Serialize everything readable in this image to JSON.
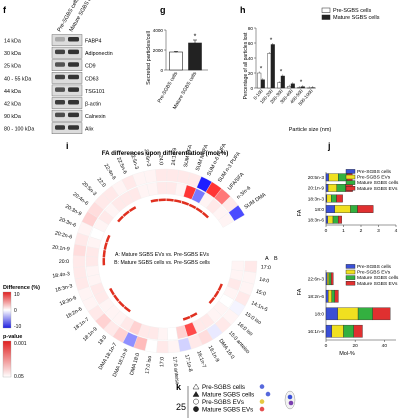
{
  "panels": {
    "f": {
      "letter": "f",
      "columns": [
        "Pre-SGBS cells",
        "Mature SGBS cells"
      ],
      "rows": [
        {
          "size": "14 kDa",
          "protein": "FABP4"
        },
        {
          "size": "30 kDa",
          "protein": "Adiponectin"
        },
        {
          "size": "25 kDa",
          "protein": "CD9"
        },
        {
          "size": "40 - 55 kDa",
          "protein": "CD63"
        },
        {
          "size": "44 kDa",
          "protein": "TSG101"
        },
        {
          "size": "42 kDa",
          "protein": "β-actin"
        },
        {
          "size": "90 kDa",
          "protein": "Calnexin"
        },
        {
          "size": "80 - 100 kDa",
          "protein": "Alix"
        }
      ]
    },
    "g": {
      "letter": "g",
      "ylabel": "Secreted particles/cell",
      "significance": "*",
      "chart_data": {
        "type": "bar",
        "categories": [
          "Pre-SGBS cells",
          "Mature SGBS cells"
        ],
        "values": [
          1800,
          2700
        ],
        "errors": [
          60,
          300
        ],
        "ylim": [
          0,
          4000
        ],
        "yticks": [
          0,
          2000,
          4000
        ],
        "colors": [
          "#ffffff",
          "#222222"
        ]
      }
    },
    "h": {
      "letter": "h",
      "ylabel": "Percentage of all particles lost",
      "xlabel": "Particle size (nm)",
      "legend": [
        "Pre-SGBS cells",
        "Mature SGBS cells"
      ],
      "chart_data": {
        "type": "bar",
        "categories": [
          "0-100",
          "100-200",
          "200-300",
          "300-400",
          "400-500",
          "500-1000"
        ],
        "series": [
          {
            "name": "Pre-SGBS cells",
            "values": [
              20,
              46,
              7,
              2.2,
              0.6,
              0.2
            ]
          },
          {
            "name": "Mature SGBS cells",
            "values": [
              11,
              58,
              16,
              5.6,
              1.8,
              0.6
            ]
          }
        ],
        "ylim": [
          0,
          80
        ],
        "yticks": [
          0,
          20,
          40,
          60,
          80
        ],
        "significance": [
          "*",
          "*",
          "*",
          "",
          "*",
          ""
        ]
      }
    },
    "i": {
      "letter": "i",
      "title": "FA differences upon differentiation (mol-%)",
      "inner_text_a": "A: Mature SGBS EVs vs. Pre-SGBS EVs",
      "inner_text_b": "B: Mature SGBS cells vs. Pre-SGBS cells",
      "ring_a": "A",
      "ring_b": "B",
      "labels": [
        "17:0",
        "14:0",
        "15:0",
        "14:1n-5",
        "15:0 iso",
        "16:0 iso",
        "15:0 anteiso",
        "DMA 16:0",
        "16:1n-9",
        "16:1n-7",
        "17:1n-8",
        "17:0 anteiso",
        "17:0",
        "17:0 iso",
        "DMA 18:0",
        "DMA 18:1n-9",
        "DMA 18:1n-7",
        "18:0",
        "18:1n-9",
        "18:1n-7",
        "18:2n-6",
        "18:3n-6",
        "18:3n-3",
        "18:4n-3",
        "20:0",
        "20:1n-9",
        "20:2n-6",
        "20:3n-6",
        "20:3n-9",
        "20:4n-6",
        "20:5n-3",
        "22:0",
        "22:4n-6",
        "22:5n-6",
        "22:5n-3",
        "22:6n-3",
        "24:0",
        "24:1n-9",
        "SUM SFA",
        "SUM MUFA",
        "SUM n-6 PUFA",
        "SUM n-3 PUFA",
        "UFA/SFA",
        "n-3/n-6",
        "SUM DMA"
      ],
      "outer_cells": [
        0.1,
        0.05,
        0.05,
        0.1,
        -0.05,
        0.05,
        0.1,
        -0.1,
        0.15,
        0.1,
        -0.2,
        0.05,
        0.1,
        0,
        0.3,
        -0.5,
        0.2,
        0.1,
        0.2,
        0.1,
        0.05,
        0.05,
        0.1,
        0.1,
        0.1,
        0.15,
        0.1,
        0.05,
        0.2,
        0.15,
        0.1,
        0.1,
        0.05,
        0.1,
        0.05,
        0.05,
        0.1,
        0.1,
        0.1,
        0.1,
        -1.0,
        0.9,
        0.6,
        0.1,
        -0.8
      ],
      "inner_cells": [
        0.05,
        0.05,
        0.1,
        0.05,
        0,
        0.05,
        0.05,
        0.1,
        0.1,
        0.8,
        0.2,
        0,
        0.05,
        0.1,
        0.1,
        0.2,
        0.1,
        0.05,
        0.05,
        0.05,
        0.1,
        0.1,
        0.05,
        0.05,
        0.1,
        0.1,
        0.05,
        0,
        0.05,
        0.1,
        0.05,
        0.1,
        0.1,
        0.1,
        0.05,
        0.05,
        0.1,
        0.1,
        0.05,
        0.9,
        -0.6,
        0.05,
        0.1,
        0.05,
        0.05
      ],
      "colorbar": {
        "title": "Difference (%)",
        "ticks": [
          "10",
          "0",
          "-10"
        ]
      },
      "pvalue_bar": {
        "title": "p-value",
        "ticks": [
          "0.001",
          "0.05"
        ]
      }
    },
    "j": {
      "letter": "j",
      "ylabel": "FA",
      "top": {
        "legend": [
          "Pre-SGBS cells",
          "Pre-SGBS EVs",
          "Mature SGBS cells",
          "Mature SGBS EVs"
        ],
        "xticks": [
          "0",
          "1",
          "2",
          "3",
          "4"
        ],
        "xlim": [
          0,
          4
        ],
        "xlabel": "",
        "chart_data": {
          "type": "bar",
          "orientation": "horizontal",
          "categories": [
            "20:5n-3",
            "20:1n-9",
            "18:3n-3",
            "18:0",
            "18:3n-6"
          ],
          "series": [
            {
              "name": "Pre-SGBS cells",
              "values": [
                0.15,
                0.12,
                0.05,
                0.5,
                0.1
              ]
            },
            {
              "name": "Pre-SGBS EVs",
              "values": [
                0.55,
                0.5,
                0.25,
                0.9,
                0.3
              ]
            },
            {
              "name": "Mature SGBS cells",
              "values": [
                0.5,
                0.5,
                0.3,
                0.4,
                0.3
              ]
            },
            {
              "name": "Mature SGBS EVs",
              "values": [
                0.3,
                0.4,
                0.35,
                0.9,
                0.2
              ]
            }
          ]
        }
      },
      "bottom": {
        "legend": [
          "Pre-SGBS cells",
          "Pre-SGBS EVs",
          "Mature SGBS cells",
          "Mature SGBS EVs"
        ],
        "xticks": [
          "0",
          "20",
          "40"
        ],
        "xlim": [
          0,
          48
        ],
        "xlabel": "Mol-%",
        "chart_data": {
          "type": "bar",
          "orientation": "horizontal",
          "categories": [
            "22:6n-3",
            "18:2n-6",
            "18:0",
            "16:1n-9"
          ],
          "series": [
            {
              "name": "Pre-SGBS cells",
              "values": [
                0.8,
                1.5,
                8,
                4
              ]
            },
            {
              "name": "Pre-SGBS EVs",
              "values": [
                1.2,
                2.5,
                14,
                8
              ]
            },
            {
              "name": "Mature SGBS cells",
              "values": [
                1.5,
                2,
                10,
                7
              ]
            },
            {
              "name": "Mature SGBS EVs",
              "values": [
                1.5,
                2.5,
                12,
                6
              ]
            }
          ]
        }
      },
      "colors": [
        "#3a4fd6",
        "#f0e020",
        "#33b040",
        "#e03030"
      ]
    },
    "k": {
      "letter": "k",
      "axis_value": "25",
      "legend": [
        "Pre-SGBS cells",
        "Mature SGBS cells",
        "Pre-SGBS EVs",
        "Mature SGBS EVs"
      ],
      "markers": [
        "triangle",
        "filled-triangle",
        "circle",
        "filled-circle"
      ]
    }
  }
}
